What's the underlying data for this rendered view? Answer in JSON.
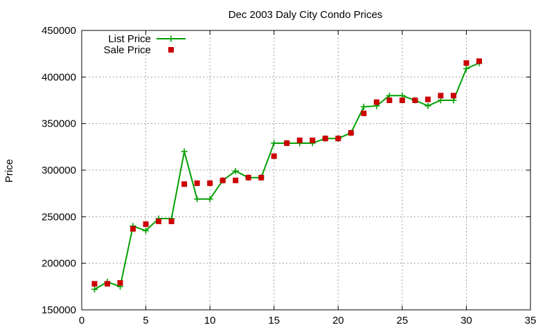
{
  "chart_data": {
    "type": "line",
    "title": "Dec 2003 Daly City Condo Prices",
    "xlabel": "",
    "ylabel": "Price",
    "xlim": [
      0,
      35
    ],
    "ylim": [
      150000,
      450000
    ],
    "x_ticks": [
      0,
      5,
      10,
      15,
      20,
      25,
      30,
      35
    ],
    "y_ticks": [
      150000,
      200000,
      250000,
      300000,
      350000,
      400000,
      450000
    ],
    "grid": true,
    "legend_position": "top-left",
    "series": [
      {
        "name": "List Price",
        "style": "line-with-plus-markers",
        "color": "#00a000",
        "x": [
          1,
          2,
          3,
          4,
          5,
          6,
          7,
          8,
          9,
          10,
          11,
          12,
          13,
          14,
          15,
          16,
          17,
          18,
          19,
          20,
          21,
          22,
          23,
          24,
          25,
          26,
          27,
          28,
          29,
          30,
          31
        ],
        "values": [
          172000,
          180000,
          175000,
          240000,
          235000,
          248000,
          248000,
          320000,
          269000,
          269000,
          289000,
          299000,
          292000,
          292000,
          329000,
          329000,
          329000,
          329000,
          334000,
          334000,
          340000,
          368000,
          369000,
          380000,
          380000,
          375000,
          369000,
          375000,
          375000,
          409000,
          415000
        ]
      },
      {
        "name": "Sale Price",
        "style": "square-markers",
        "color": "#cc0000",
        "x": [
          1,
          2,
          3,
          4,
          5,
          6,
          7,
          8,
          9,
          10,
          11,
          12,
          13,
          14,
          15,
          16,
          17,
          18,
          19,
          20,
          21,
          22,
          23,
          24,
          25,
          26,
          27,
          28,
          29,
          30,
          31
        ],
        "values": [
          178000,
          178000,
          179000,
          237000,
          242000,
          245000,
          245000,
          285000,
          286000,
          286000,
          289000,
          289000,
          292000,
          292000,
          315000,
          329000,
          332000,
          332000,
          334000,
          334000,
          340000,
          361000,
          373000,
          375000,
          375000,
          375000,
          376000,
          380000,
          380000,
          415000,
          417000
        ]
      }
    ]
  }
}
